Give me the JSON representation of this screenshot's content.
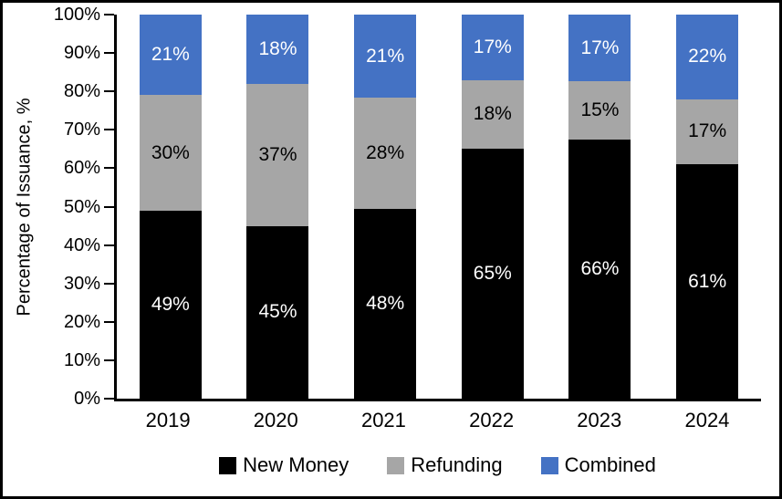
{
  "chart_data": {
    "type": "bar",
    "stacked": true,
    "title": "",
    "xlabel": "",
    "ylabel": "Percentage of Issuance, %",
    "categories": [
      "2019",
      "2020",
      "2021",
      "2022",
      "2023",
      "2024"
    ],
    "series": [
      {
        "name": "New Money",
        "color": "#000000",
        "label_color": "#FFFFFF",
        "values": [
          49,
          45,
          48,
          65,
          66,
          61
        ]
      },
      {
        "name": "Refunding",
        "color": "#A6A6A6",
        "label_color": "#000000",
        "values": [
          30,
          37,
          28,
          18,
          15,
          17
        ]
      },
      {
        "name": "Combined",
        "color": "#4472C4",
        "label_color": "#FFFFFF",
        "values": [
          21,
          18,
          21,
          17,
          17,
          22
        ]
      }
    ],
    "data_label_suffix": "%",
    "ylim": [
      0,
      100
    ],
    "ytick_step": 10,
    "ytick_labels": [
      "0%",
      "10%",
      "20%",
      "30%",
      "40%",
      "50%",
      "60%",
      "70%",
      "80%",
      "90%",
      "100%"
    ],
    "grid": false,
    "legend_position": "bottom"
  },
  "frame": {
    "background": "#FFFFFF",
    "border_color": "#000000",
    "axis_color": "#000000"
  }
}
